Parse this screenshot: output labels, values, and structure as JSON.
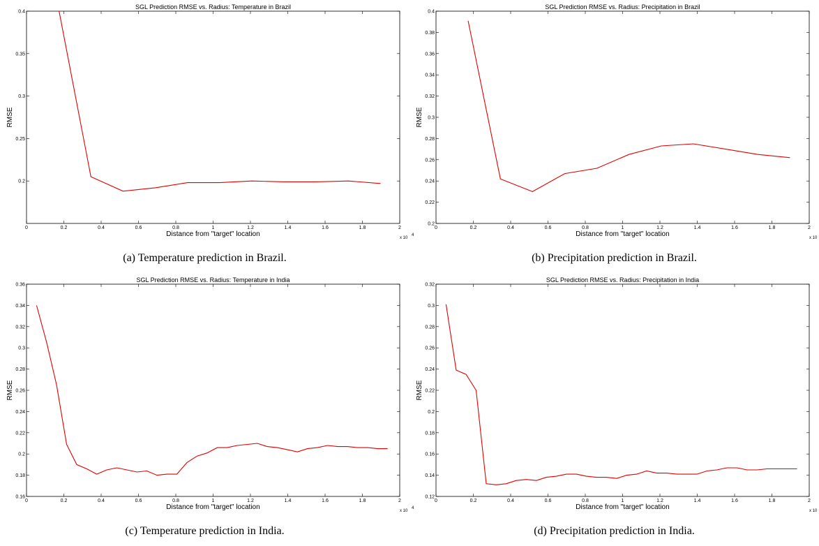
{
  "chart_data": [
    {
      "type": "line",
      "title": "SGL Prediction RMSE vs. Radius: Temperature in Brazil",
      "xlabel": "Distance from \"target\" location",
      "ylabel": "RMSE",
      "caption": "(a)  Temperature prediction in Brazil.",
      "xlim": [
        0,
        2
      ],
      "ylim": [
        0.15,
        0.4
      ],
      "xticks": [
        "0",
        "0.2",
        "0.4",
        "0.6",
        "0.8",
        "1",
        "1.2",
        "1.4",
        "1.6",
        "1.8",
        "2"
      ],
      "yticks": [
        "0.2",
        "0.25",
        "0.3",
        "0.35",
        "0.4"
      ],
      "x_multiplier": "x 10",
      "x_exponent": "4",
      "color": "#e00000",
      "series": [
        {
          "x": [
            0.172,
            0.345,
            0.517,
            0.69,
            0.862,
            1.034,
            1.207,
            1.379,
            1.552,
            1.724,
            1.897
          ],
          "y": [
            0.403,
            0.205,
            0.188,
            0.192,
            0.198,
            0.198,
            0.2,
            0.199,
            0.199,
            0.2,
            0.197
          ]
        }
      ]
    },
    {
      "type": "line",
      "title": "SGL Prediction RMSE vs. Radius: Precipitation in Brazil",
      "xlabel": "Distance from \"target\" location",
      "ylabel": "RMSE",
      "caption": "(b)  Precipitation prediction in Brazil.",
      "xlim": [
        0,
        2
      ],
      "ylim": [
        0.2,
        0.4
      ],
      "xticks": [
        "0",
        "0.2",
        "0.4",
        "0.6",
        "0.8",
        "1",
        "1.2",
        "1.4",
        "1.6",
        "1.8",
        "2"
      ],
      "yticks": [
        "0.2",
        "0.22",
        "0.24",
        "0.26",
        "0.28",
        "0.3",
        "0.32",
        "0.34",
        "0.36",
        "0.38",
        "0.4"
      ],
      "x_multiplier": "x 10",
      "x_exponent": "4",
      "color": "#e00000",
      "series": [
        {
          "x": [
            0.172,
            0.345,
            0.517,
            0.69,
            0.862,
            1.034,
            1.207,
            1.379,
            1.552,
            1.724,
            1.897
          ],
          "y": [
            0.391,
            0.242,
            0.23,
            0.247,
            0.252,
            0.265,
            0.273,
            0.275,
            0.27,
            0.265,
            0.262
          ]
        }
      ]
    },
    {
      "type": "line",
      "title": "SGL Prediction RMSE vs. Radius: Temperature in India",
      "xlabel": "Distance from \"target\" location",
      "ylabel": "RMSE",
      "caption": "(c)  Temperature prediction in India.",
      "xlim": [
        0,
        2
      ],
      "ylim": [
        0.16,
        0.36
      ],
      "xticks": [
        "0",
        "0.2",
        "0.4",
        "0.6",
        "0.8",
        "1",
        "1.2",
        "1.4",
        "1.6",
        "1.8",
        "2"
      ],
      "yticks": [
        "0.16",
        "0.18",
        "0.2",
        "0.22",
        "0.24",
        "0.26",
        "0.28",
        "0.3",
        "0.32",
        "0.34",
        "0.36"
      ],
      "x_multiplier": "x 10",
      "x_exponent": "4",
      "color": "#e00000",
      "series": [
        {
          "x": [
            0.054,
            0.108,
            0.161,
            0.215,
            0.269,
            0.323,
            0.376,
            0.43,
            0.484,
            0.538,
            0.591,
            0.645,
            0.699,
            0.753,
            0.806,
            0.86,
            0.914,
            0.968,
            1.022,
            1.075,
            1.129,
            1.183,
            1.237,
            1.29,
            1.344,
            1.398,
            1.452,
            1.505,
            1.559,
            1.613,
            1.667,
            1.72,
            1.774,
            1.828,
            1.882,
            1.935
          ],
          "y": [
            0.34,
            0.305,
            0.265,
            0.209,
            0.19,
            0.186,
            0.181,
            0.185,
            0.187,
            0.185,
            0.183,
            0.184,
            0.18,
            0.181,
            0.181,
            0.192,
            0.198,
            0.201,
            0.206,
            0.206,
            0.208,
            0.209,
            0.21,
            0.207,
            0.206,
            0.204,
            0.202,
            0.205,
            0.206,
            0.208,
            0.207,
            0.207,
            0.206,
            0.206,
            0.205,
            0.205
          ]
        }
      ]
    },
    {
      "type": "line",
      "title": "SGL Prediction RMSE vs. Radius: Precipitation in India",
      "xlabel": "Distance from \"target\" location",
      "ylabel": "RMSE",
      "caption": "(d)  Precipitation prediction in India.",
      "xlim": [
        0,
        2
      ],
      "ylim": [
        0.12,
        0.32
      ],
      "xticks": [
        "0",
        "0.2",
        "0.4",
        "0.6",
        "0.8",
        "1",
        "1.2",
        "1.4",
        "1.6",
        "1.8",
        "2"
      ],
      "yticks": [
        "0.12",
        "0.14",
        "0.16",
        "0.18",
        "0.2",
        "0.22",
        "0.24",
        "0.26",
        "0.28",
        "0.3",
        "0.32"
      ],
      "x_multiplier": "x 10",
      "x_exponent": "4",
      "color": "#e00000",
      "series": [
        {
          "x": [
            0.054,
            0.108,
            0.161,
            0.215,
            0.269,
            0.323,
            0.376,
            0.43,
            0.484,
            0.538,
            0.591,
            0.645,
            0.699,
            0.753,
            0.806,
            0.86,
            0.914,
            0.968,
            1.022,
            1.075,
            1.129,
            1.183,
            1.237,
            1.29,
            1.344,
            1.398,
            1.452,
            1.505,
            1.559,
            1.613,
            1.667,
            1.72,
            1.774,
            1.828,
            1.882,
            1.935
          ],
          "y": [
            0.301,
            0.239,
            0.235,
            0.22,
            0.132,
            0.131,
            0.132,
            0.135,
            0.136,
            0.135,
            0.138,
            0.139,
            0.141,
            0.141,
            0.139,
            0.138,
            0.138,
            0.137,
            0.14,
            0.141,
            0.144,
            0.142,
            0.142,
            0.141,
            0.141,
            0.141,
            0.144,
            0.145,
            0.147,
            0.147,
            0.145,
            0.145,
            0.146,
            0.146,
            0.146,
            0.146
          ]
        }
      ]
    }
  ]
}
